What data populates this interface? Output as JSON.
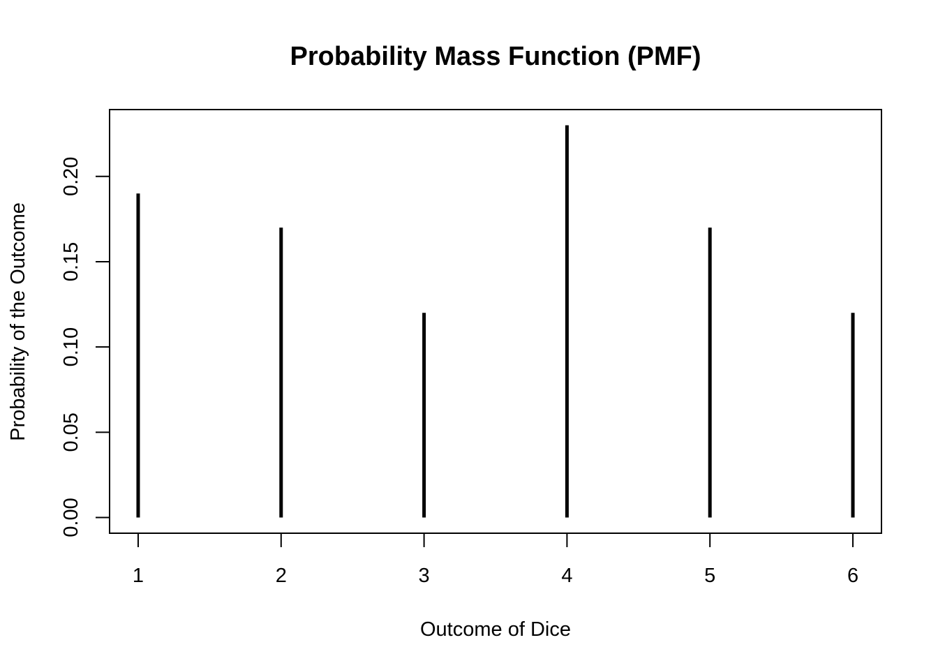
{
  "chart_data": {
    "type": "bar",
    "style": "vertical-lines",
    "title": "Probability Mass Function (PMF)",
    "xlabel": "Outcome of Dice",
    "ylabel": "Probability of the Outcome",
    "categories": [
      1,
      2,
      3,
      4,
      5,
      6
    ],
    "values": [
      0.19,
      0.17,
      0.12,
      0.23,
      0.17,
      0.12
    ],
    "x_ticks": [
      "1",
      "2",
      "3",
      "4",
      "5",
      "6"
    ],
    "y_ticks": [
      0.0,
      0.05,
      0.1,
      0.15,
      0.2
    ],
    "y_tick_labels": [
      "0.00",
      "0.05",
      "0.10",
      "0.15",
      "0.20"
    ],
    "xlim": [
      0.8,
      6.2
    ],
    "ylim": [
      -0.0092,
      0.2392
    ],
    "grid": false,
    "legend": "none",
    "colors": {
      "bars": "#000000",
      "axes": "#000000",
      "background": "#ffffff"
    }
  }
}
